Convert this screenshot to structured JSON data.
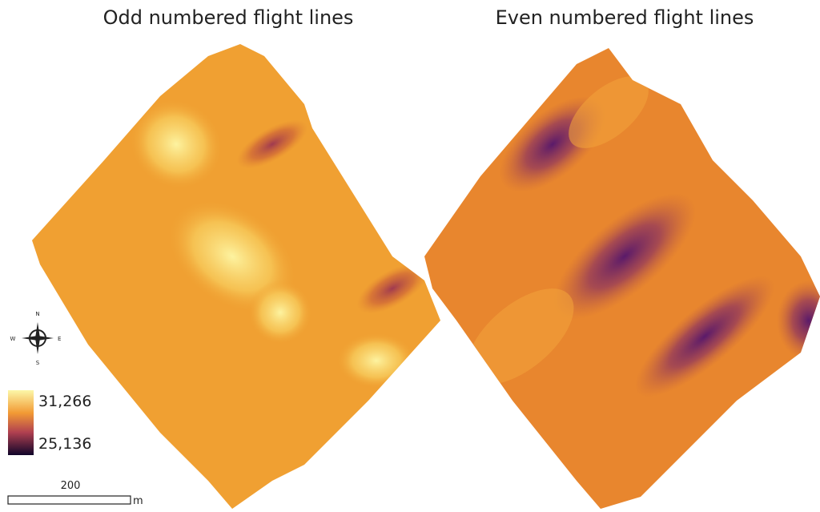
{
  "titles": {
    "left": "Odd numbered flight lines",
    "right": "Even numbered flight lines"
  },
  "legend": {
    "max_label": "31,266",
    "min_label": "25,136"
  },
  "compass": {
    "north": "N",
    "east": "E",
    "south": "S",
    "west": "W"
  },
  "scale_bar": {
    "distance": "200",
    "unit": "m"
  }
}
